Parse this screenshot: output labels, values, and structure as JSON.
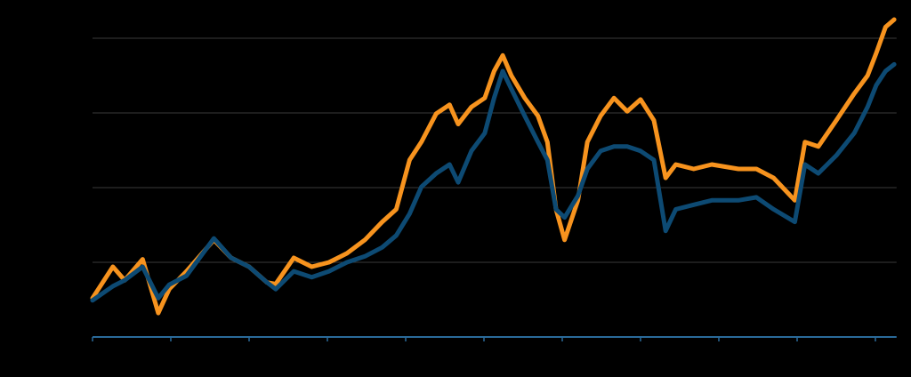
{
  "chart_data": {
    "type": "line",
    "x": [
      0,
      0.26,
      0.41,
      0.64,
      0.84,
      0.98,
      1.2,
      1.55,
      1.77,
      2,
      2.23,
      2.34,
      2.57,
      2.8,
      3.02,
      3.25,
      3.48,
      3.7,
      3.88,
      4.05,
      4.2,
      4.39,
      4.56,
      4.67,
      4.84,
      5.01,
      5.13,
      5.24,
      5.35,
      5.52,
      5.69,
      5.81,
      5.92,
      6.03,
      6.2,
      6.32,
      6.49,
      6.66,
      6.83,
      7,
      7.17,
      7.32,
      7.45,
      7.68,
      7.91,
      8.25,
      8.48,
      8.7,
      8.97,
      9.1,
      9.27,
      9.5,
      9.73,
      9.9,
      10.01,
      10.13,
      10.24
    ],
    "series": [
      {
        "color": "#f7931e",
        "values": [
          0.52,
          0.94,
          0.76,
          1.04,
          0.32,
          0.64,
          0.88,
          1.3,
          1.06,
          0.94,
          0.73,
          0.71,
          1.06,
          0.94,
          1,
          1.12,
          1.3,
          1.54,
          1.71,
          2.37,
          2.61,
          2.99,
          3.11,
          2.85,
          3.08,
          3.2,
          3.56,
          3.77,
          3.5,
          3.2,
          2.96,
          2.61,
          1.71,
          1.3,
          1.83,
          2.61,
          2.96,
          3.2,
          3.02,
          3.18,
          2.9,
          2.13,
          2.31,
          2.25,
          2.31,
          2.25,
          2.25,
          2.13,
          1.83,
          2.61,
          2.55,
          2.9,
          3.26,
          3.5,
          3.8,
          4.15,
          4.25
        ]
      },
      {
        "color": "#0d4a73",
        "values": [
          0.49,
          0.68,
          0.76,
          0.94,
          0.52,
          0.7,
          0.82,
          1.32,
          1.06,
          0.94,
          0.73,
          0.64,
          0.88,
          0.8,
          0.88,
          1,
          1.08,
          1.2,
          1.36,
          1.65,
          2.01,
          2.19,
          2.31,
          2.07,
          2.49,
          2.73,
          3.2,
          3.56,
          3.32,
          2.96,
          2.61,
          2.37,
          1.71,
          1.6,
          1.89,
          2.25,
          2.49,
          2.55,
          2.55,
          2.49,
          2.37,
          1.42,
          1.71,
          1.77,
          1.83,
          1.83,
          1.87,
          1.71,
          1.54,
          2.31,
          2.19,
          2.43,
          2.73,
          3.08,
          3.37,
          3.56,
          3.65
        ]
      }
    ],
    "xlim": [
      0,
      10.27
    ],
    "xticks": [
      0,
      1,
      2,
      3,
      4,
      5,
      6,
      7,
      8,
      9,
      10
    ],
    "ylim": [
      0,
      4.5
    ],
    "yticks": [
      0,
      1,
      2,
      3,
      4
    ],
    "grid": true
  }
}
